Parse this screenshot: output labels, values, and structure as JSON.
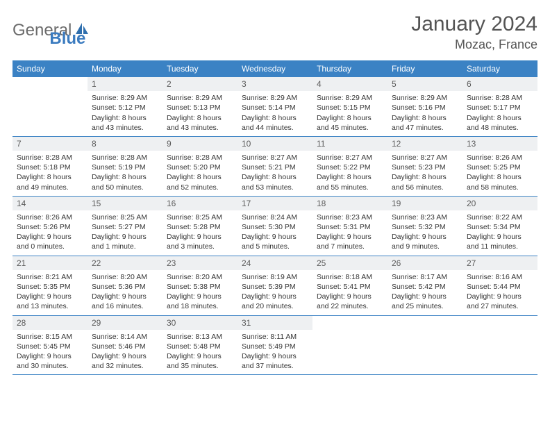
{
  "brand": {
    "general": "General",
    "blue": "Blue"
  },
  "header": {
    "title": "January 2024",
    "location": "Mozac, France"
  },
  "colors": {
    "accent": "#3b82c4",
    "weekday_text": "#ffffff",
    "daynum_bg": "#eef0f2",
    "text": "#333333"
  },
  "weekdays": [
    "Sunday",
    "Monday",
    "Tuesday",
    "Wednesday",
    "Thursday",
    "Friday",
    "Saturday"
  ],
  "weeks": [
    [
      {
        "n": "",
        "sunrise": "",
        "sunset": "",
        "daylight1": "",
        "daylight2": "",
        "empty": true
      },
      {
        "n": "1",
        "sunrise": "Sunrise: 8:29 AM",
        "sunset": "Sunset: 5:12 PM",
        "daylight1": "Daylight: 8 hours",
        "daylight2": "and 43 minutes."
      },
      {
        "n": "2",
        "sunrise": "Sunrise: 8:29 AM",
        "sunset": "Sunset: 5:13 PM",
        "daylight1": "Daylight: 8 hours",
        "daylight2": "and 43 minutes."
      },
      {
        "n": "3",
        "sunrise": "Sunrise: 8:29 AM",
        "sunset": "Sunset: 5:14 PM",
        "daylight1": "Daylight: 8 hours",
        "daylight2": "and 44 minutes."
      },
      {
        "n": "4",
        "sunrise": "Sunrise: 8:29 AM",
        "sunset": "Sunset: 5:15 PM",
        "daylight1": "Daylight: 8 hours",
        "daylight2": "and 45 minutes."
      },
      {
        "n": "5",
        "sunrise": "Sunrise: 8:29 AM",
        "sunset": "Sunset: 5:16 PM",
        "daylight1": "Daylight: 8 hours",
        "daylight2": "and 47 minutes."
      },
      {
        "n": "6",
        "sunrise": "Sunrise: 8:28 AM",
        "sunset": "Sunset: 5:17 PM",
        "daylight1": "Daylight: 8 hours",
        "daylight2": "and 48 minutes."
      }
    ],
    [
      {
        "n": "7",
        "sunrise": "Sunrise: 8:28 AM",
        "sunset": "Sunset: 5:18 PM",
        "daylight1": "Daylight: 8 hours",
        "daylight2": "and 49 minutes."
      },
      {
        "n": "8",
        "sunrise": "Sunrise: 8:28 AM",
        "sunset": "Sunset: 5:19 PM",
        "daylight1": "Daylight: 8 hours",
        "daylight2": "and 50 minutes."
      },
      {
        "n": "9",
        "sunrise": "Sunrise: 8:28 AM",
        "sunset": "Sunset: 5:20 PM",
        "daylight1": "Daylight: 8 hours",
        "daylight2": "and 52 minutes."
      },
      {
        "n": "10",
        "sunrise": "Sunrise: 8:27 AM",
        "sunset": "Sunset: 5:21 PM",
        "daylight1": "Daylight: 8 hours",
        "daylight2": "and 53 minutes."
      },
      {
        "n": "11",
        "sunrise": "Sunrise: 8:27 AM",
        "sunset": "Sunset: 5:22 PM",
        "daylight1": "Daylight: 8 hours",
        "daylight2": "and 55 minutes."
      },
      {
        "n": "12",
        "sunrise": "Sunrise: 8:27 AM",
        "sunset": "Sunset: 5:23 PM",
        "daylight1": "Daylight: 8 hours",
        "daylight2": "and 56 minutes."
      },
      {
        "n": "13",
        "sunrise": "Sunrise: 8:26 AM",
        "sunset": "Sunset: 5:25 PM",
        "daylight1": "Daylight: 8 hours",
        "daylight2": "and 58 minutes."
      }
    ],
    [
      {
        "n": "14",
        "sunrise": "Sunrise: 8:26 AM",
        "sunset": "Sunset: 5:26 PM",
        "daylight1": "Daylight: 9 hours",
        "daylight2": "and 0 minutes."
      },
      {
        "n": "15",
        "sunrise": "Sunrise: 8:25 AM",
        "sunset": "Sunset: 5:27 PM",
        "daylight1": "Daylight: 9 hours",
        "daylight2": "and 1 minute."
      },
      {
        "n": "16",
        "sunrise": "Sunrise: 8:25 AM",
        "sunset": "Sunset: 5:28 PM",
        "daylight1": "Daylight: 9 hours",
        "daylight2": "and 3 minutes."
      },
      {
        "n": "17",
        "sunrise": "Sunrise: 8:24 AM",
        "sunset": "Sunset: 5:30 PM",
        "daylight1": "Daylight: 9 hours",
        "daylight2": "and 5 minutes."
      },
      {
        "n": "18",
        "sunrise": "Sunrise: 8:23 AM",
        "sunset": "Sunset: 5:31 PM",
        "daylight1": "Daylight: 9 hours",
        "daylight2": "and 7 minutes."
      },
      {
        "n": "19",
        "sunrise": "Sunrise: 8:23 AM",
        "sunset": "Sunset: 5:32 PM",
        "daylight1": "Daylight: 9 hours",
        "daylight2": "and 9 minutes."
      },
      {
        "n": "20",
        "sunrise": "Sunrise: 8:22 AM",
        "sunset": "Sunset: 5:34 PM",
        "daylight1": "Daylight: 9 hours",
        "daylight2": "and 11 minutes."
      }
    ],
    [
      {
        "n": "21",
        "sunrise": "Sunrise: 8:21 AM",
        "sunset": "Sunset: 5:35 PM",
        "daylight1": "Daylight: 9 hours",
        "daylight2": "and 13 minutes."
      },
      {
        "n": "22",
        "sunrise": "Sunrise: 8:20 AM",
        "sunset": "Sunset: 5:36 PM",
        "daylight1": "Daylight: 9 hours",
        "daylight2": "and 16 minutes."
      },
      {
        "n": "23",
        "sunrise": "Sunrise: 8:20 AM",
        "sunset": "Sunset: 5:38 PM",
        "daylight1": "Daylight: 9 hours",
        "daylight2": "and 18 minutes."
      },
      {
        "n": "24",
        "sunrise": "Sunrise: 8:19 AM",
        "sunset": "Sunset: 5:39 PM",
        "daylight1": "Daylight: 9 hours",
        "daylight2": "and 20 minutes."
      },
      {
        "n": "25",
        "sunrise": "Sunrise: 8:18 AM",
        "sunset": "Sunset: 5:41 PM",
        "daylight1": "Daylight: 9 hours",
        "daylight2": "and 22 minutes."
      },
      {
        "n": "26",
        "sunrise": "Sunrise: 8:17 AM",
        "sunset": "Sunset: 5:42 PM",
        "daylight1": "Daylight: 9 hours",
        "daylight2": "and 25 minutes."
      },
      {
        "n": "27",
        "sunrise": "Sunrise: 8:16 AM",
        "sunset": "Sunset: 5:44 PM",
        "daylight1": "Daylight: 9 hours",
        "daylight2": "and 27 minutes."
      }
    ],
    [
      {
        "n": "28",
        "sunrise": "Sunrise: 8:15 AM",
        "sunset": "Sunset: 5:45 PM",
        "daylight1": "Daylight: 9 hours",
        "daylight2": "and 30 minutes."
      },
      {
        "n": "29",
        "sunrise": "Sunrise: 8:14 AM",
        "sunset": "Sunset: 5:46 PM",
        "daylight1": "Daylight: 9 hours",
        "daylight2": "and 32 minutes."
      },
      {
        "n": "30",
        "sunrise": "Sunrise: 8:13 AM",
        "sunset": "Sunset: 5:48 PM",
        "daylight1": "Daylight: 9 hours",
        "daylight2": "and 35 minutes."
      },
      {
        "n": "31",
        "sunrise": "Sunrise: 8:11 AM",
        "sunset": "Sunset: 5:49 PM",
        "daylight1": "Daylight: 9 hours",
        "daylight2": "and 37 minutes."
      },
      {
        "n": "",
        "sunrise": "",
        "sunset": "",
        "daylight1": "",
        "daylight2": "",
        "empty": true
      },
      {
        "n": "",
        "sunrise": "",
        "sunset": "",
        "daylight1": "",
        "daylight2": "",
        "empty": true
      },
      {
        "n": "",
        "sunrise": "",
        "sunset": "",
        "daylight1": "",
        "daylight2": "",
        "empty": true
      }
    ]
  ]
}
